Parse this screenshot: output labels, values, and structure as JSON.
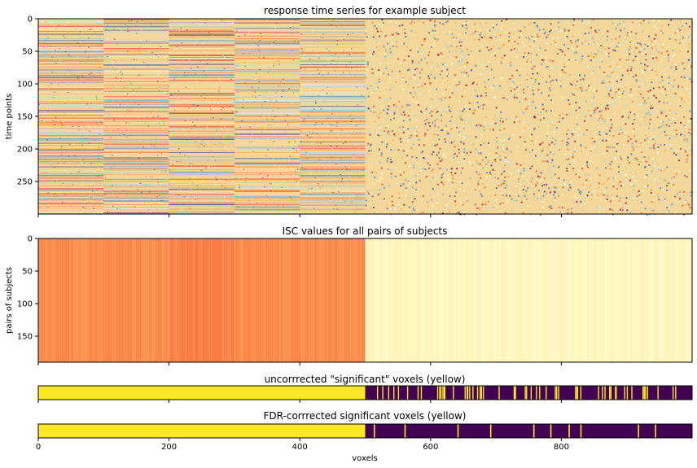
{
  "chart_data": [
    {
      "type": "heatmap",
      "title": "response time series for example subject",
      "xlabel": "",
      "ylabel": "time points",
      "xlim": [
        0,
        1000
      ],
      "ylim": [
        300,
        0
      ],
      "xticks": [
        0,
        200,
        400,
        600,
        800
      ],
      "xtick_labels_shown": false,
      "yticks": [
        0,
        50,
        100,
        150,
        200,
        250
      ],
      "colormap": "RdYlBu",
      "structure": {
        "signal_voxels": [
          0,
          500
        ],
        "noise_voxels": [
          500,
          1000
        ],
        "block_boundaries": [
          100,
          200,
          300,
          400
        ]
      }
    },
    {
      "type": "heatmap",
      "title": "ISC values for all pairs of subjects",
      "xlabel": "",
      "ylabel": "pairs of subjects",
      "xlim": [
        0,
        1000
      ],
      "ylim": [
        190,
        0
      ],
      "xticks": [
        0,
        200,
        400,
        600,
        800
      ],
      "xtick_labels_shown": false,
      "yticks": [
        0,
        50,
        100,
        150
      ],
      "colormap": "YlOrRd",
      "structure": {
        "high_isc_voxels": [
          0,
          500
        ],
        "low_isc_voxels": [
          500,
          1000
        ],
        "block_boundaries": [
          200,
          300
        ]
      }
    },
    {
      "type": "heatmap",
      "title": "uncorrrected \"significant\" voxels (yellow)",
      "xlabel": "",
      "xlim": [
        0,
        1000
      ],
      "xticks": [
        0,
        200,
        400,
        600,
        800
      ],
      "xtick_labels_shown": false,
      "colormap": "viridis",
      "significant_range": [
        0,
        500
      ],
      "scattered_false_positives_beyond_500": true
    },
    {
      "type": "heatmap",
      "title": "FDR-corrrected significant voxels (yellow)",
      "xlabel": "voxels",
      "xlim": [
        0,
        1000
      ],
      "xticks": [
        0,
        200,
        400,
        600,
        800
      ],
      "xtick_labels": [
        "0",
        "200",
        "400",
        "600",
        "800"
      ],
      "colormap": "viridis",
      "significant_range": [
        0,
        500
      ],
      "isolated_voxels_beyond_500": [
        513,
        560,
        641,
        691,
        757,
        783,
        811,
        829,
        917,
        943
      ]
    }
  ],
  "colors": {
    "signal_base": "#f4d79a",
    "isc_block_a": "#fb8f4f",
    "isc_block_b": "#fa7f46",
    "isc_noise": "#fff7c2",
    "sig_yellow": "#fde725",
    "nonsig_purple": "#440154"
  }
}
